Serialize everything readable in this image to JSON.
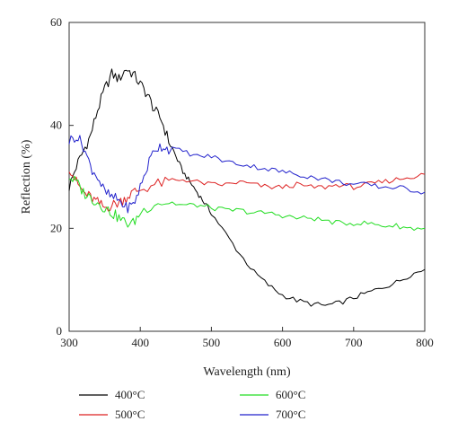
{
  "chart_data": {
    "type": "line",
    "title": "",
    "xlabel": "Wavelength (nm)",
    "ylabel": "Reflection (%)",
    "xlim": [
      300,
      800
    ],
    "ylim": [
      0,
      60
    ],
    "xticks": [
      300,
      400,
      500,
      600,
      700,
      800
    ],
    "yticks": [
      0,
      20,
      40,
      60
    ],
    "grid": false,
    "legend_position": "bottom",
    "series": [
      {
        "name": "400°C",
        "color": "#000000",
        "x": [
          300,
          310,
          320,
          330,
          340,
          350,
          360,
          370,
          380,
          390,
          400,
          410,
          420,
          430,
          440,
          450,
          460,
          470,
          480,
          490,
          500,
          520,
          540,
          560,
          580,
          600,
          620,
          640,
          660,
          680,
          700,
          720,
          740,
          760,
          780,
          800
        ],
        "y": [
          28,
          32,
          35,
          38,
          43,
          47,
          50,
          49,
          51,
          50,
          48,
          46,
          43,
          41,
          37,
          34,
          31,
          29,
          27,
          25,
          23,
          19,
          15,
          11.5,
          9,
          7,
          6,
          5.3,
          5,
          5.5,
          6.5,
          7.5,
          8.5,
          9.5,
          11,
          12
        ]
      },
      {
        "name": "500°C",
        "color": "#dd2222",
        "x": [
          300,
          310,
          320,
          330,
          340,
          350,
          360,
          370,
          380,
          390,
          400,
          420,
          440,
          460,
          480,
          500,
          520,
          540,
          560,
          580,
          600,
          620,
          640,
          660,
          680,
          700,
          720,
          740,
          760,
          780,
          800
        ],
        "y": [
          32,
          29,
          27,
          26,
          25,
          24,
          24.5,
          25,
          26,
          27,
          27.5,
          28.5,
          29,
          29.5,
          29,
          28.5,
          28.5,
          29,
          28.5,
          28,
          28,
          28.5,
          28,
          28,
          28.5,
          28,
          28.5,
          29,
          29.5,
          30,
          30.5
        ]
      },
      {
        "name": "600°C",
        "color": "#22dd22",
        "x": [
          300,
          310,
          320,
          330,
          340,
          350,
          360,
          370,
          380,
          390,
          400,
          420,
          440,
          460,
          480,
          500,
          520,
          540,
          560,
          580,
          600,
          620,
          640,
          660,
          680,
          700,
          720,
          740,
          760,
          780,
          800
        ],
        "y": [
          30,
          29,
          27,
          26,
          25,
          24,
          23,
          22,
          21,
          21,
          23,
          25,
          25,
          24.5,
          24.5,
          24,
          23.5,
          23.5,
          23,
          23,
          22.5,
          22,
          22,
          21.5,
          21,
          21,
          21,
          20.5,
          20.5,
          20,
          20
        ]
      },
      {
        "name": "700°C",
        "color": "#2222cc",
        "x": [
          300,
          310,
          320,
          330,
          340,
          350,
          360,
          370,
          380,
          390,
          400,
          410,
          420,
          430,
          440,
          460,
          480,
          500,
          520,
          540,
          560,
          580,
          600,
          620,
          640,
          660,
          680,
          700,
          720,
          740,
          760,
          780,
          800
        ],
        "y": [
          37,
          38,
          36,
          32,
          30,
          27,
          26,
          25.5,
          24,
          24.5,
          28,
          32,
          35.5,
          36,
          35.5,
          35,
          34,
          34,
          33,
          32.5,
          32,
          31.5,
          31,
          30.5,
          30,
          29.5,
          29,
          28.5,
          28.5,
          28,
          28,
          27.5,
          27
        ]
      }
    ]
  }
}
